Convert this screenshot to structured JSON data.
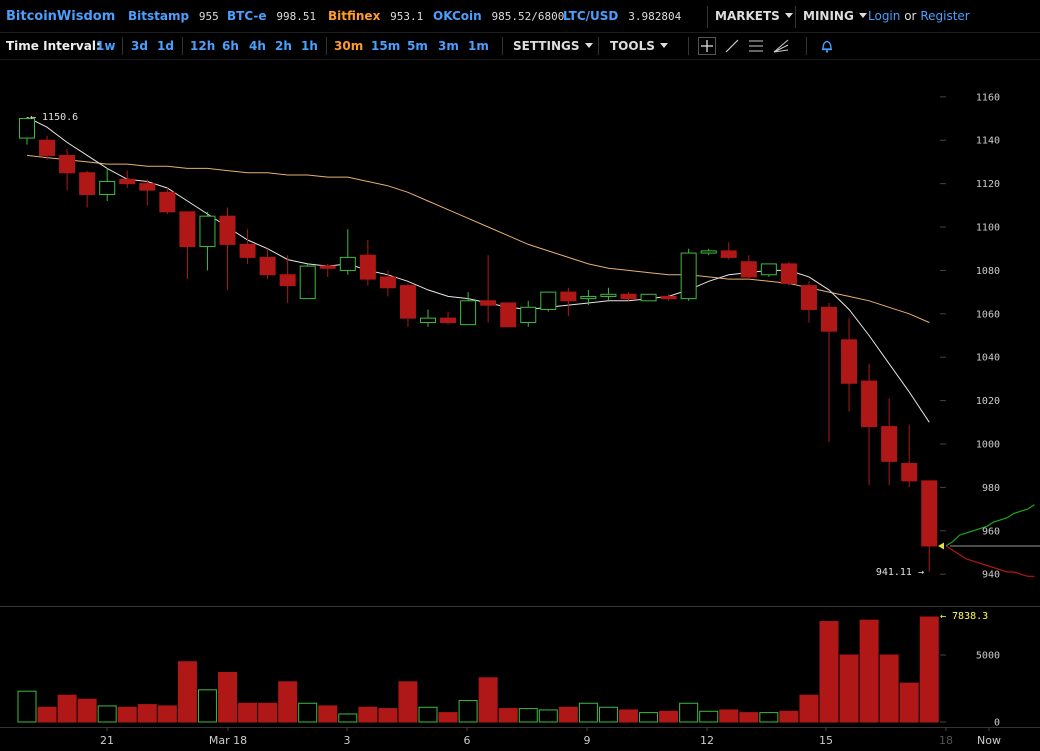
{
  "header": {
    "brand": "BitcoinWisdom",
    "markets": [
      {
        "name": "Bitstamp",
        "price": "955",
        "color": "#4a9fff"
      },
      {
        "name": "BTC-e",
        "price": "998.51",
        "color": "#4a9fff"
      },
      {
        "name": "Bitfinex",
        "price": "953.1",
        "color": "#ff9c2a"
      },
      {
        "name": "OKCoin",
        "price": "985.52/6800",
        "color": "#4a9fff"
      },
      {
        "name": "LTC/USD",
        "price": "3.982804",
        "color": "#4a9fff"
      }
    ],
    "markets_menu": "MARKETS",
    "mining_menu": "MINING",
    "login": "Login",
    "or": "or",
    "register": "Register"
  },
  "toolbar": {
    "time_interval_label": "Time Interval:",
    "intervals": [
      "1w",
      "3d",
      "1d",
      "12h",
      "6h",
      "4h",
      "2h",
      "1h",
      "30m",
      "15m",
      "5m",
      "3m",
      "1m"
    ],
    "active_interval": "30m",
    "settings_label": "SETTINGS",
    "tools_label": "TOOLS",
    "draw_tools": [
      "crosshair-icon",
      "trend-line-icon",
      "fibonacci-icon",
      "fan-icon",
      "alert-bell-icon"
    ]
  },
  "colors": {
    "up": "#3dbd3d",
    "down": "#b01818",
    "ema_fast": "#e6e6e6",
    "ema_slow": "#e8b070",
    "bid": "#1fa61f",
    "ask": "#b31818",
    "link": "#4a9fff",
    "accent": "#ff9c2a",
    "high_marker": "#e0e0e0",
    "volume_marker": "#ffff55"
  },
  "chart_data": {
    "type": "candlestick",
    "price_axis": {
      "ticks": [
        940,
        960,
        980,
        1000,
        1020,
        1040,
        1060,
        1080,
        1100,
        1120,
        1140,
        1160
      ],
      "range": [
        935,
        1165
      ]
    },
    "volume_axis": {
      "ticks": [
        0,
        5000
      ],
      "range": [
        0,
        7838.3
      ]
    },
    "x_labels": [
      "21",
      "Mar 18",
      "3",
      "6",
      "9",
      "12",
      "15",
      "18",
      "Now"
    ],
    "high_label": "1150.6",
    "low_label": "941.11",
    "volume_max_label": "7838.3",
    "grid": false,
    "candles": [
      {
        "o": 1141,
        "h": 1150.6,
        "l": 1138,
        "c": 1150,
        "v": 2300
      },
      {
        "o": 1140,
        "h": 1142,
        "l": 1131,
        "c": 1133,
        "v": 1100
      },
      {
        "o": 1133,
        "h": 1136,
        "l": 1117,
        "c": 1125,
        "v": 2000
      },
      {
        "o": 1125,
        "h": 1126,
        "l": 1109,
        "c": 1115,
        "v": 1700
      },
      {
        "o": 1115,
        "h": 1127,
        "l": 1112,
        "c": 1121,
        "v": 1200
      },
      {
        "o": 1122,
        "h": 1126,
        "l": 1118,
        "c": 1120,
        "v": 1100
      },
      {
        "o": 1120,
        "h": 1122,
        "l": 1110,
        "c": 1117,
        "v": 1300
      },
      {
        "o": 1116,
        "h": 1118,
        "l": 1106,
        "c": 1107,
        "v": 1200
      },
      {
        "o": 1107,
        "h": 1107,
        "l": 1076,
        "c": 1091,
        "v": 4500
      },
      {
        "o": 1091,
        "h": 1107,
        "l": 1080,
        "c": 1105,
        "v": 2400
      },
      {
        "o": 1105,
        "h": 1109,
        "l": 1071,
        "c": 1092,
        "v": 3700
      },
      {
        "o": 1092,
        "h": 1099,
        "l": 1083,
        "c": 1086,
        "v": 1400
      },
      {
        "o": 1086,
        "h": 1090,
        "l": 1076,
        "c": 1078,
        "v": 1400
      },
      {
        "o": 1078,
        "h": 1087,
        "l": 1065,
        "c": 1073,
        "v": 3000
      },
      {
        "o": 1067,
        "h": 1083,
        "l": 1067,
        "c": 1082,
        "v": 1400
      },
      {
        "o": 1082,
        "h": 1083,
        "l": 1077,
        "c": 1081,
        "v": 1200
      },
      {
        "o": 1080,
        "h": 1099,
        "l": 1078,
        "c": 1086,
        "v": 600
      },
      {
        "o": 1087,
        "h": 1094,
        "l": 1073,
        "c": 1076,
        "v": 1100
      },
      {
        "o": 1077,
        "h": 1080,
        "l": 1068,
        "c": 1072,
        "v": 1000
      },
      {
        "o": 1073,
        "h": 1074,
        "l": 1054,
        "c": 1058,
        "v": 3000
      },
      {
        "o": 1056,
        "h": 1062,
        "l": 1054,
        "c": 1058,
        "v": 1100
      },
      {
        "o": 1058,
        "h": 1061,
        "l": 1055,
        "c": 1056,
        "v": 700
      },
      {
        "o": 1055,
        "h": 1070,
        "l": 1055,
        "c": 1066,
        "v": 1600
      },
      {
        "o": 1066,
        "h": 1087,
        "l": 1056,
        "c": 1064,
        "v": 3300
      },
      {
        "o": 1065,
        "h": 1065,
        "l": 1054,
        "c": 1054,
        "v": 1000
      },
      {
        "o": 1056,
        "h": 1066,
        "l": 1054,
        "c": 1063,
        "v": 1000
      },
      {
        "o": 1062,
        "h": 1070,
        "l": 1061,
        "c": 1070,
        "v": 900
      },
      {
        "o": 1070,
        "h": 1072,
        "l": 1059,
        "c": 1066,
        "v": 1100
      },
      {
        "o": 1067,
        "h": 1071,
        "l": 1064,
        "c": 1068,
        "v": 1400
      },
      {
        "o": 1068,
        "h": 1072,
        "l": 1066,
        "c": 1069,
        "v": 1100
      },
      {
        "o": 1069,
        "h": 1070,
        "l": 1066,
        "c": 1067,
        "v": 900
      },
      {
        "o": 1066,
        "h": 1069,
        "l": 1066,
        "c": 1069,
        "v": 700
      },
      {
        "o": 1068,
        "h": 1069,
        "l": 1066,
        "c": 1067,
        "v": 800
      },
      {
        "o": 1067,
        "h": 1090,
        "l": 1066,
        "c": 1088,
        "v": 1400
      },
      {
        "o": 1088,
        "h": 1090,
        "l": 1087,
        "c": 1089,
        "v": 800
      },
      {
        "o": 1089,
        "h": 1093,
        "l": 1085,
        "c": 1086,
        "v": 900
      },
      {
        "o": 1084,
        "h": 1087,
        "l": 1076,
        "c": 1077,
        "v": 700
      },
      {
        "o": 1078,
        "h": 1083,
        "l": 1077,
        "c": 1083,
        "v": 700
      },
      {
        "o": 1083,
        "h": 1084,
        "l": 1073,
        "c": 1074,
        "v": 800
      },
      {
        "o": 1073,
        "h": 1075,
        "l": 1056,
        "c": 1062,
        "v": 2000
      },
      {
        "o": 1063,
        "h": 1065,
        "l": 1001,
        "c": 1052,
        "v": 7500
      },
      {
        "o": 1048,
        "h": 1058,
        "l": 1015,
        "c": 1028,
        "v": 5000
      },
      {
        "o": 1029,
        "h": 1037,
        "l": 981,
        "c": 1008,
        "v": 7600
      },
      {
        "o": 1008,
        "h": 1021,
        "l": 981,
        "c": 992,
        "v": 5000
      },
      {
        "o": 991,
        "h": 1009,
        "l": 980,
        "c": 983,
        "v": 2900
      },
      {
        "o": 983,
        "h": 983,
        "l": 941.11,
        "c": 953,
        "v": 7838.3
      }
    ],
    "ema_fast": [
      1150.6,
      1146,
      1139,
      1133,
      1127,
      1122,
      1121,
      1118,
      1112,
      1106,
      1100,
      1094,
      1090,
      1085,
      1083,
      1082,
      1083,
      1080,
      1078,
      1075,
      1071,
      1068,
      1067,
      1065,
      1063,
      1062,
      1063,
      1064,
      1065,
      1066,
      1066,
      1067,
      1068,
      1071,
      1075,
      1078,
      1079,
      1080,
      1080,
      1077,
      1071,
      1062,
      1050,
      1037,
      1024,
      1010
    ],
    "ema_slow": [
      1133,
      1132,
      1131,
      1130,
      1129,
      1129,
      1128,
      1128,
      1127,
      1127,
      1126,
      1125,
      1125,
      1124,
      1124,
      1123,
      1123,
      1121,
      1119,
      1116,
      1112,
      1108,
      1104,
      1100,
      1096,
      1092,
      1089,
      1086,
      1083,
      1081,
      1080,
      1079,
      1078,
      1078,
      1077,
      1076,
      1076,
      1075,
      1074,
      1072,
      1070,
      1068,
      1066,
      1063,
      1060,
      1056
    ],
    "depth": {
      "mid": 953,
      "bid_start_x": 953,
      "bid_levels": [
        953,
        955,
        958,
        959,
        960,
        961,
        962,
        964,
        965,
        966,
        968,
        969,
        970,
        972
      ],
      "ask_levels": [
        953,
        951,
        949,
        947,
        946,
        945,
        944,
        943,
        942,
        941,
        941,
        940,
        939,
        939
      ]
    }
  }
}
